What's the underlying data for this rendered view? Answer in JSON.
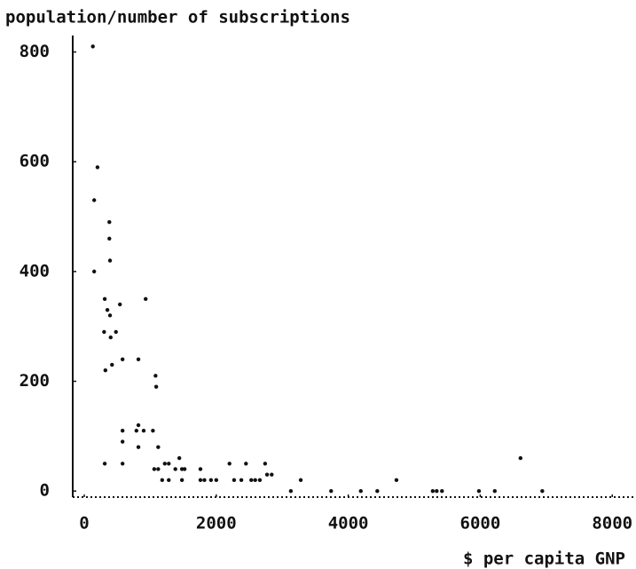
{
  "chart_data": {
    "type": "scatter",
    "title": "population/number of subscriptions",
    "x_label": "$ per capita GNP",
    "color": "#111111",
    "xlim": [
      -175,
      8360
    ],
    "ylim": [
      -11,
      830
    ],
    "xticks": [
      0,
      2000,
      4000,
      6000,
      8000
    ],
    "yticks": [
      0,
      200,
      400,
      600,
      800
    ],
    "x": [
      130,
      200,
      150,
      150,
      300,
      390,
      400,
      380,
      380,
      310,
      350,
      390,
      320,
      480,
      420,
      540,
      580,
      310,
      580,
      580,
      580,
      820,
      790,
      820,
      900,
      820,
      930,
      1080,
      1090,
      1040,
      1120,
      1060,
      1120,
      1180,
      1220,
      1280,
      1280,
      1380,
      1440,
      1480,
      1520,
      1480,
      1760,
      1760,
      1820,
      1920,
      2000,
      2200,
      2270,
      2380,
      2450,
      2530,
      2590,
      2660,
      2740,
      2770,
      2840,
      3130,
      3280,
      3740,
      4190,
      4440,
      4730,
      5280,
      5340,
      5420,
      5980,
      6220,
      6610,
      6940
    ],
    "y": [
      810,
      590,
      530,
      400,
      290,
      420,
      280,
      490,
      460,
      350,
      330,
      320,
      220,
      290,
      230,
      340,
      240,
      50,
      110,
      90,
      50,
      240,
      110,
      120,
      110,
      80,
      350,
      210,
      190,
      110,
      80,
      40,
      40,
      20,
      50,
      50,
      20,
      40,
      60,
      40,
      40,
      20,
      40,
      20,
      20,
      20,
      20,
      50,
      20,
      20,
      50,
      20,
      20,
      20,
      50,
      30,
      30,
      0,
      20,
      0,
      0,
      0,
      20,
      0,
      0,
      0,
      0,
      0,
      60,
      0
    ]
  }
}
